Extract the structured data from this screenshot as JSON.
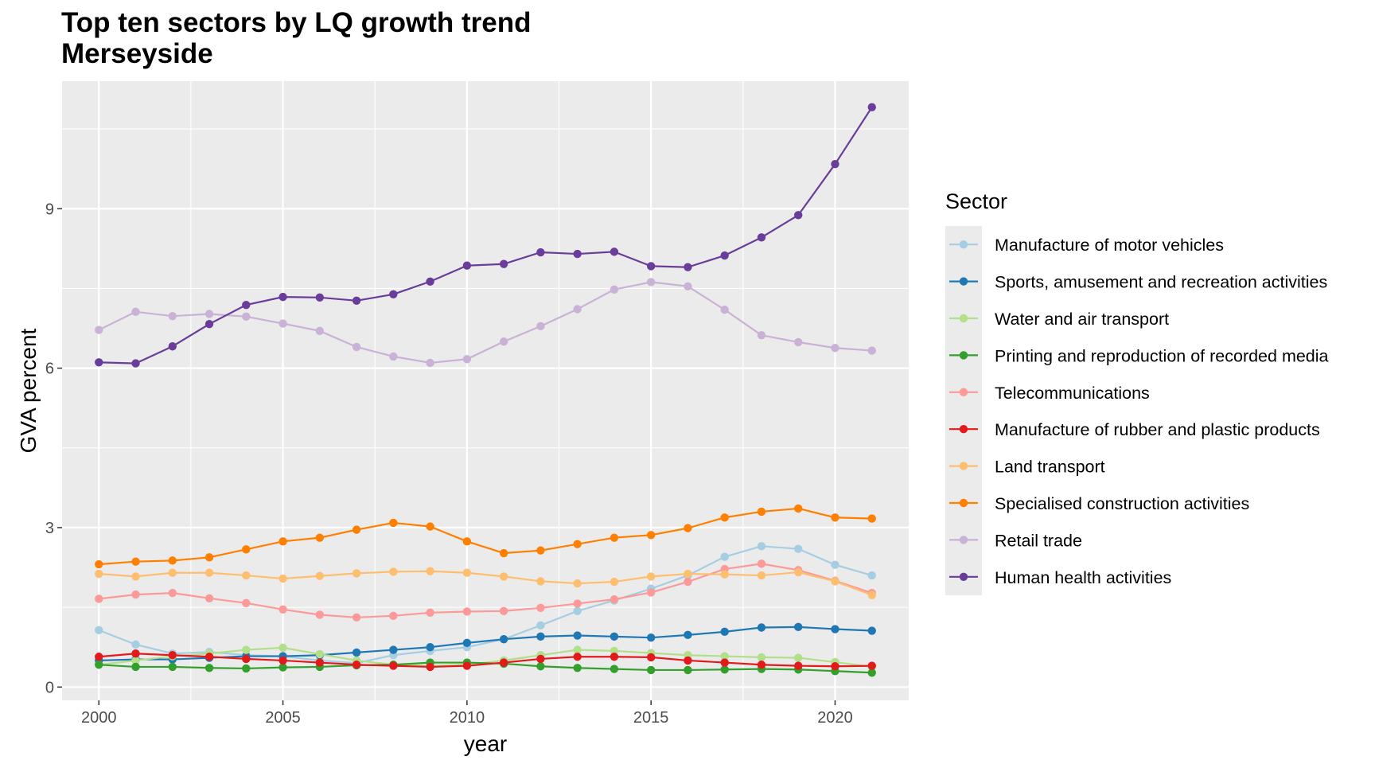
{
  "chart_data": {
    "type": "line",
    "title": "Top ten sectors by LQ growth trend",
    "subtitle": "Merseyside",
    "xlabel": "year",
    "ylabel": "GVA percent",
    "xlim": [
      1999,
      2022
    ],
    "ylim": [
      -0.25,
      11.4
    ],
    "x_ticks": [
      2000,
      2005,
      2010,
      2015,
      2020
    ],
    "x_tick_labels": [
      "2000",
      "2005",
      "2010",
      "2015",
      "2020"
    ],
    "y_ticks": [
      0,
      3,
      6,
      9
    ],
    "y_tick_labels": [
      "0",
      "3",
      "6",
      "9"
    ],
    "grid": true,
    "legend_title": "Sector",
    "legend_position": "right",
    "x": [
      2000,
      2001,
      2002,
      2003,
      2004,
      2005,
      2006,
      2007,
      2008,
      2009,
      2010,
      2011,
      2012,
      2013,
      2014,
      2015,
      2016,
      2017,
      2018,
      2019,
      2020,
      2021
    ],
    "series": [
      {
        "name": "Manufacture of motor vehicles",
        "color": "#a6cee3",
        "values": [
          1.07,
          0.8,
          0.63,
          0.66,
          0.6,
          0.58,
          0.5,
          0.45,
          0.6,
          0.68,
          0.75,
          0.9,
          1.16,
          1.43,
          1.63,
          1.85,
          2.1,
          2.45,
          2.65,
          2.6,
          2.3,
          2.1
        ]
      },
      {
        "name": "Sports, amusement and recreation activities",
        "color": "#1f78b4",
        "values": [
          0.5,
          0.52,
          0.52,
          0.55,
          0.58,
          0.58,
          0.6,
          0.65,
          0.7,
          0.75,
          0.83,
          0.9,
          0.95,
          0.97,
          0.95,
          0.93,
          0.98,
          1.04,
          1.12,
          1.13,
          1.09,
          1.06
        ]
      },
      {
        "name": "Water and air transport",
        "color": "#b2df8a",
        "values": [
          0.42,
          0.5,
          0.58,
          0.63,
          0.7,
          0.74,
          0.62,
          0.5,
          0.42,
          0.4,
          0.42,
          0.5,
          0.6,
          0.7,
          0.68,
          0.64,
          0.6,
          0.58,
          0.56,
          0.55,
          0.47,
          0.38
        ]
      },
      {
        "name": "Printing and reproduction of recorded media",
        "color": "#33a02c",
        "values": [
          0.42,
          0.38,
          0.38,
          0.36,
          0.35,
          0.37,
          0.38,
          0.41,
          0.42,
          0.46,
          0.46,
          0.44,
          0.39,
          0.36,
          0.34,
          0.32,
          0.32,
          0.33,
          0.34,
          0.33,
          0.3,
          0.27
        ]
      },
      {
        "name": "Telecommunications",
        "color": "#fb9a99",
        "values": [
          1.66,
          1.74,
          1.77,
          1.67,
          1.58,
          1.46,
          1.36,
          1.31,
          1.34,
          1.4,
          1.42,
          1.43,
          1.49,
          1.57,
          1.65,
          1.78,
          1.98,
          2.22,
          2.32,
          2.2,
          2.0,
          1.77
        ]
      },
      {
        "name": "Manufacture of rubber and plastic products",
        "color": "#e31a1c",
        "values": [
          0.57,
          0.63,
          0.6,
          0.57,
          0.53,
          0.5,
          0.46,
          0.42,
          0.4,
          0.38,
          0.4,
          0.46,
          0.53,
          0.57,
          0.57,
          0.56,
          0.5,
          0.46,
          0.42,
          0.4,
          0.39,
          0.4
        ]
      },
      {
        "name": "Land transport",
        "color": "#fdbf6f",
        "values": [
          2.13,
          2.08,
          2.15,
          2.15,
          2.1,
          2.04,
          2.09,
          2.14,
          2.17,
          2.18,
          2.15,
          2.08,
          1.99,
          1.95,
          1.98,
          2.08,
          2.13,
          2.12,
          2.1,
          2.16,
          1.99,
          1.73
        ]
      },
      {
        "name": "Specialised construction activities",
        "color": "#ff7f00",
        "values": [
          2.31,
          2.36,
          2.38,
          2.44,
          2.59,
          2.74,
          2.81,
          2.96,
          3.09,
          3.02,
          2.74,
          2.52,
          2.57,
          2.69,
          2.81,
          2.86,
          2.99,
          3.19,
          3.3,
          3.36,
          3.19,
          3.17
        ]
      },
      {
        "name": "Retail trade",
        "color": "#cab2d6",
        "values": [
          6.72,
          7.06,
          6.98,
          7.02,
          6.97,
          6.84,
          6.7,
          6.4,
          6.22,
          6.1,
          6.17,
          6.5,
          6.79,
          7.11,
          7.48,
          7.62,
          7.54,
          7.1,
          6.62,
          6.49,
          6.38,
          6.33
        ]
      },
      {
        "name": "Human health activities",
        "color": "#6a3d9a",
        "values": [
          6.11,
          6.09,
          6.41,
          6.83,
          7.19,
          7.34,
          7.33,
          7.27,
          7.39,
          7.63,
          7.93,
          7.96,
          8.18,
          8.15,
          8.19,
          7.92,
          7.9,
          8.12,
          8.46,
          8.88,
          9.84,
          10.91
        ]
      }
    ]
  }
}
